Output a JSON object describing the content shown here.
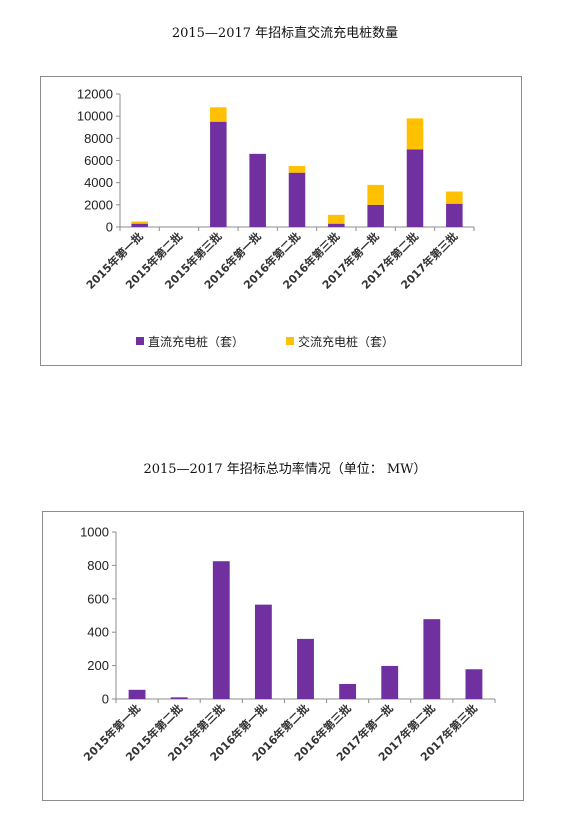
{
  "titles": {
    "chart1": "2015—2017 年招标直交流充电桩数量",
    "chart2": "2015—2017 年招标总功率情况（单位： MW）"
  },
  "colors": {
    "purple": "#7030a0",
    "yellow": "#ffc000",
    "axis": "#8c8c8c",
    "frame": "#8c8c8c"
  },
  "chart_data": [
    {
      "type": "bar",
      "stacked": true,
      "title": "2015—2017 年招标直交流充电桩数量",
      "categories": [
        "2015年第一批",
        "2015年第二批",
        "2015年第三批",
        "2016年第一批",
        "2016年第二批",
        "2016年第三批",
        "2017年第一批",
        "2017年第二批",
        "2017年第三批"
      ],
      "series": [
        {
          "name": "直流充电桩（套）",
          "color": "#7030a0",
          "values": [
            300,
            0,
            9500,
            6600,
            4900,
            300,
            2000,
            7000,
            2100
          ]
        },
        {
          "name": "交流充电桩（套）",
          "color": "#ffc000",
          "values": [
            200,
            0,
            1300,
            0,
            600,
            800,
            1800,
            2800,
            1100
          ]
        }
      ],
      "ylim": [
        0,
        12000
      ],
      "yticks": [
        "0",
        "2000",
        "4000",
        "6000",
        "8000",
        "10000",
        "12000"
      ],
      "grid": false,
      "legend": "bottom"
    },
    {
      "type": "bar",
      "title": "2015—2017 年招标总功率情况（单位： MW）",
      "categories": [
        "2015年第一批",
        "2015年第二批",
        "2015年第三批",
        "2016年第一批",
        "2016年第二批",
        "2016年第三批",
        "2017年第一批",
        "2017年第二批",
        "2017年第三批"
      ],
      "series": [
        {
          "color": "#7030a0",
          "values": [
            55,
            10,
            825,
            565,
            360,
            90,
            198,
            478,
            178
          ]
        }
      ],
      "ylim": [
        0,
        1000
      ],
      "yticks": [
        "0",
        "200",
        "400",
        "600",
        "800",
        "1000"
      ],
      "grid": false
    }
  ]
}
